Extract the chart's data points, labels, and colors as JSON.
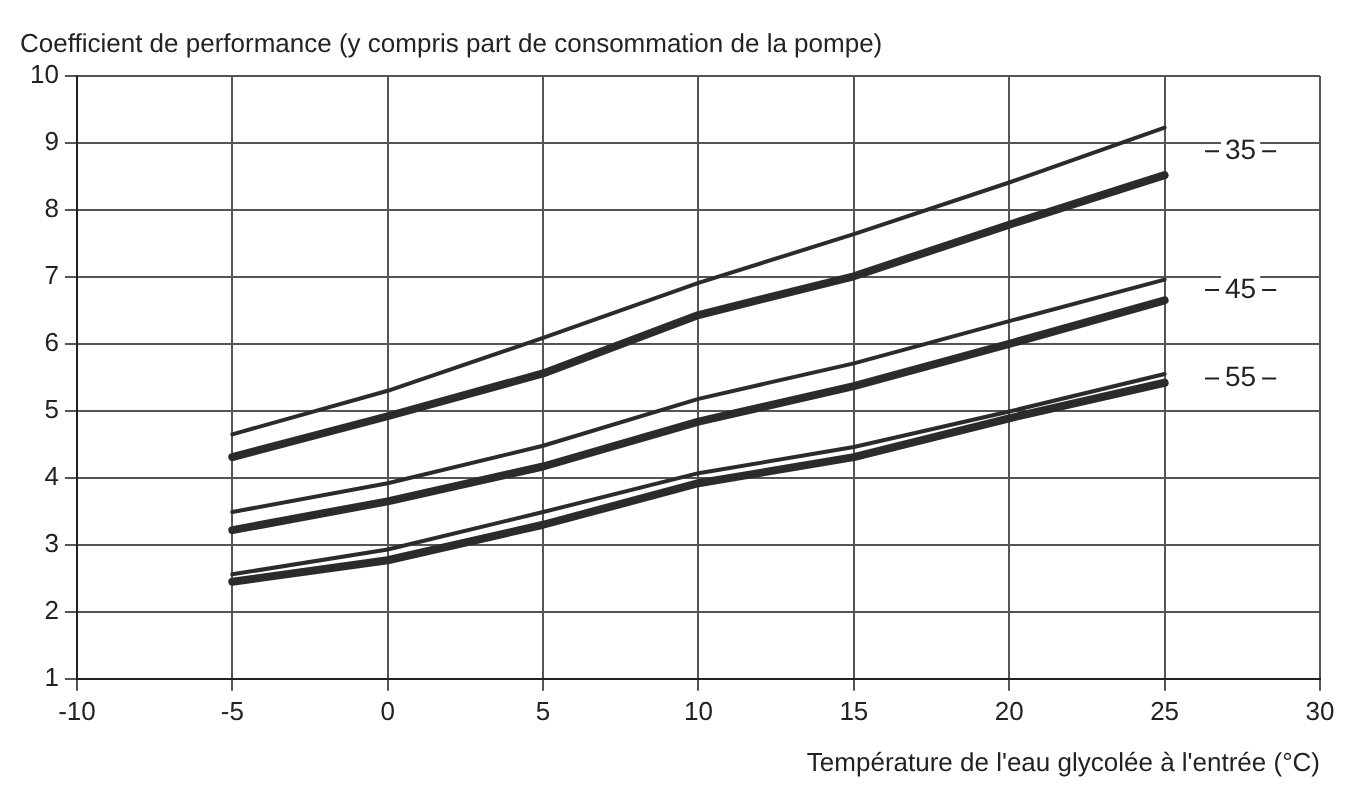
{
  "chart_data": {
    "type": "line",
    "ylabel": "Coefficient de performance (y compris part de consommation de la pompe)",
    "xlabel": "Température de l'eau glycolée à l'entrée (°C)",
    "x": [
      -5,
      0,
      5,
      10,
      15,
      20,
      25
    ],
    "series": [
      {
        "color": "#2b2b2b",
        "values": [
          4.65,
          5.3,
          6.09,
          6.91,
          7.64,
          8.41,
          9.23
        ]
      },
      {
        "color": "#2b2b2b",
        "values": [
          4.31,
          4.92,
          5.56,
          6.43,
          7.01,
          7.78,
          8.52
        ]
      },
      {
        "color": "#2b2b2b",
        "values": [
          3.49,
          3.92,
          4.48,
          5.18,
          5.71,
          6.34,
          6.96
        ]
      },
      {
        "color": "#2b2b2b",
        "values": [
          3.22,
          3.65,
          4.17,
          4.84,
          5.37,
          6.0,
          6.65
        ]
      },
      {
        "color": "#2b2b2b",
        "values": [
          2.56,
          2.93,
          3.49,
          4.07,
          4.46,
          4.99,
          5.55
        ]
      },
      {
        "color": "#2b2b2b",
        "values": [
          2.45,
          2.77,
          3.3,
          3.92,
          4.31,
          4.89,
          5.42
        ]
      }
    ],
    "annotations": [
      "35",
      "45",
      "55"
    ],
    "xlim": [
      -10,
      30
    ],
    "xticks": [
      -10,
      -5,
      0,
      5,
      10,
      15,
      20,
      25,
      30
    ],
    "ylim": [
      1,
      10
    ],
    "yticks": [
      1,
      2,
      3,
      4,
      5,
      6,
      7,
      8,
      9,
      10
    ],
    "grid": true,
    "legend": false,
    "marker": "none",
    "line_style": "solid"
  }
}
